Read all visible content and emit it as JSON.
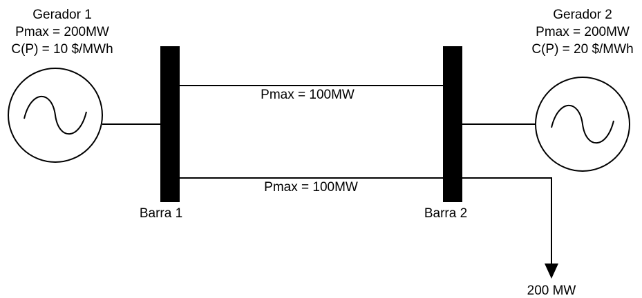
{
  "generators": [
    {
      "name": "Gerador 1",
      "pmax": "Pmax = 200MW",
      "cost": "C(P) = 10 $/MWh"
    },
    {
      "name": "Gerador 2",
      "pmax": "Pmax = 200MW",
      "cost": "C(P) = 20 $/MWh"
    }
  ],
  "buses": [
    {
      "label": "Barra 1"
    },
    {
      "label": "Barra 2"
    }
  ],
  "lines": [
    {
      "label": "Pmax = 100MW"
    },
    {
      "label": "Pmax = 100MW"
    }
  ],
  "load": {
    "label": "200 MW"
  }
}
